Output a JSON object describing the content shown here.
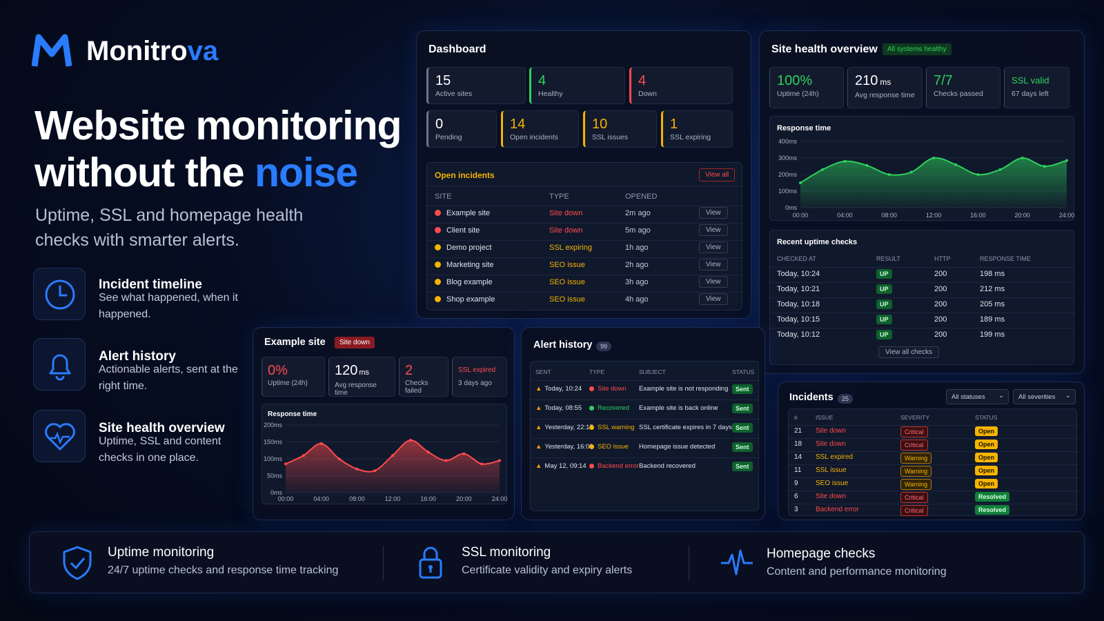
{
  "brand": {
    "name_main": "Monitro",
    "name_accent": "va"
  },
  "hero": {
    "line1": "Website monitoring",
    "line2_main": "without the ",
    "line2_accent": "noise",
    "subtitle": "Uptime, SSL and homepage health checks with smarter alerts."
  },
  "features": [
    {
      "title": "Incident timeline",
      "desc": "See what happened, when it happened.",
      "icon": "clock-icon"
    },
    {
      "title": "Alert history",
      "desc": "Actionable alerts, sent at the right time.",
      "icon": "bell-icon"
    },
    {
      "title": "Site health overview",
      "desc": "Uptime, SSL and content checks in one place.",
      "icon": "heart-pulse-icon"
    }
  ],
  "dashboard": {
    "title": "Dashboard",
    "stats": [
      {
        "value": "15",
        "label": "Active sites",
        "color": "#6b7690"
      },
      {
        "value": "4",
        "label": "Healthy",
        "color": "#2ed15a"
      },
      {
        "value": "4",
        "label": "Down",
        "color": "#ff4b4b"
      },
      {
        "value": "0",
        "label": "Pending",
        "color": "#6b7690"
      },
      {
        "value": "14",
        "label": "Open incidents",
        "color": "#f5b400"
      },
      {
        "value": "10",
        "label": "SSL issues",
        "color": "#f5b400"
      },
      {
        "value": "1",
        "label": "SSL expiring",
        "color": "#f5b400"
      }
    ],
    "incidents": {
      "title": "Open incidents",
      "view_all": "View all",
      "headers": [
        "SITE",
        "TYPE",
        "OPENED"
      ],
      "rows": [
        {
          "site": "Example site",
          "type": "Site down",
          "opened": "2m ago",
          "sev": "red",
          "action": "View"
        },
        {
          "site": "Client site",
          "type": "Site down",
          "opened": "5m ago",
          "sev": "red",
          "action": "View"
        },
        {
          "site": "Demo project",
          "type": "SSL expiring",
          "opened": "1h ago",
          "sev": "yel",
          "action": "View"
        },
        {
          "site": "Marketing site",
          "type": "SEO issue",
          "opened": "2h ago",
          "sev": "yel",
          "action": "View"
        },
        {
          "site": "Blog example",
          "type": "SEO issue",
          "opened": "3h ago",
          "sev": "yel",
          "action": "View"
        },
        {
          "site": "Shop example",
          "type": "SEO issue",
          "opened": "4h ago",
          "sev": "yel",
          "action": "View"
        }
      ]
    }
  },
  "health": {
    "title": "Site health overview",
    "badge": "All systems healthy",
    "stats": [
      {
        "value": "100%",
        "label": "Uptime (24h)",
        "color": "#2ed15a"
      },
      {
        "value": "210",
        "unit": "ms",
        "label": "Avg response time",
        "color": "#ffffff"
      },
      {
        "value": "7/7",
        "label": "Checks passed",
        "color": "#2ed15a"
      },
      {
        "value": "SSL valid",
        "label": "67 days left",
        "color": "#2ed15a"
      }
    ],
    "chart_title": "Response time",
    "checks": {
      "title": "Recent uptime checks",
      "headers": [
        "CHECKED AT",
        "RESULT",
        "HTTP",
        "RESPONSE TIME"
      ],
      "rows": [
        {
          "at": "Today, 10:24",
          "result": "UP",
          "http": "200",
          "rt": "198 ms"
        },
        {
          "at": "Today, 10:21",
          "result": "UP",
          "http": "200",
          "rt": "212 ms"
        },
        {
          "at": "Today, 10:18",
          "result": "UP",
          "http": "200",
          "rt": "205 ms"
        },
        {
          "at": "Today, 10:15",
          "result": "UP",
          "http": "200",
          "rt": "189 ms"
        },
        {
          "at": "Today, 10:12",
          "result": "UP",
          "http": "200",
          "rt": "199 ms"
        }
      ],
      "view_all": "View all checks"
    }
  },
  "example": {
    "title": "Example site",
    "badge": "Site down",
    "stats": [
      {
        "value": "0%",
        "label": "Uptime (24h)",
        "color": "#ff4b4b"
      },
      {
        "value": "120",
        "unit": "ms",
        "label": "Avg response time",
        "color": "#ffffff"
      },
      {
        "value": "2",
        "label": "Checks failed",
        "color": "#ff4b4b"
      },
      {
        "value": "SSL expired",
        "label": "3 days ago",
        "color": "#ff4b4b"
      }
    ],
    "chart_title": "Response time"
  },
  "alerts": {
    "title": "Alert history",
    "count": "99",
    "headers": [
      "SENT",
      "TYPE",
      "SUBJECT",
      "STATUS"
    ],
    "rows": [
      {
        "sent": "Today, 10:24",
        "type": "Site down",
        "tcolor": "red",
        "subject": "Example site is not responding",
        "status": "Sent"
      },
      {
        "sent": "Today, 08:55",
        "type": "Recovered",
        "tcolor": "grn",
        "subject": "Example site is back online",
        "status": "Sent"
      },
      {
        "sent": "Yesterday, 22:17",
        "type": "SSL warning",
        "tcolor": "yel",
        "subject": "SSL certificate expires in 7 days",
        "status": "Sent"
      },
      {
        "sent": "Yesterday, 16:03",
        "type": "SEO issue",
        "tcolor": "yel",
        "subject": "Homepage issue detected",
        "status": "Sent"
      },
      {
        "sent": "May 12, 09:14",
        "type": "Backend error",
        "tcolor": "red",
        "subject": "Backend recovered",
        "status": "Sent"
      }
    ]
  },
  "incidents": {
    "title": "Incidents",
    "count": "25",
    "filter1": "All statuses",
    "filter2": "All severities",
    "headers": [
      "#",
      "ISSUE",
      "SEVERITY",
      "STATUS"
    ],
    "rows": [
      {
        "id": "21",
        "issue": "Site down",
        "icolor": "red",
        "sev": "Critical",
        "status": "Open"
      },
      {
        "id": "18",
        "issue": "Site down",
        "icolor": "red",
        "sev": "Critical",
        "status": "Open"
      },
      {
        "id": "14",
        "issue": "SSL expired",
        "icolor": "yel",
        "sev": "Warning",
        "status": "Open"
      },
      {
        "id": "11",
        "issue": "SSL issue",
        "icolor": "yel",
        "sev": "Warning",
        "status": "Open"
      },
      {
        "id": "9",
        "issue": "SEO issue",
        "icolor": "yel",
        "sev": "Warning",
        "status": "Open"
      },
      {
        "id": "6",
        "issue": "Site down",
        "icolor": "red",
        "sev": "Critical",
        "status": "Resolved"
      },
      {
        "id": "3",
        "issue": "Backend error",
        "icolor": "red",
        "sev": "Critical",
        "status": "Resolved"
      }
    ]
  },
  "bottom": [
    {
      "title": "Uptime monitoring",
      "desc": "24/7 uptime checks and response time tracking",
      "icon": "shield-check-icon"
    },
    {
      "title": "SSL monitoring",
      "desc": "Certificate validity and expiry alerts",
      "icon": "lock-icon"
    },
    {
      "title": "Homepage checks",
      "desc": "Content and performance monitoring",
      "icon": "pulse-icon"
    }
  ],
  "chart_data": [
    {
      "type": "area",
      "title": "Response time",
      "x_ticks": [
        "00:00",
        "04:00",
        "08:00",
        "12:00",
        "16:00",
        "20:00",
        "24:00"
      ],
      "y_ticks": [
        "0ms",
        "100ms",
        "200ms",
        "300ms",
        "400ms"
      ],
      "ylim": [
        0,
        400
      ],
      "color": "#2ed15a",
      "x": [
        0,
        2,
        4,
        6,
        8,
        10,
        12,
        14,
        16,
        18,
        20,
        22,
        24
      ],
      "values": [
        150,
        230,
        280,
        255,
        200,
        215,
        300,
        260,
        200,
        230,
        300,
        250,
        285
      ]
    },
    {
      "type": "area",
      "title": "Response time",
      "x_ticks": [
        "00:00",
        "04:00",
        "08:00",
        "12:00",
        "16:00",
        "20:00",
        "24:00"
      ],
      "y_ticks": [
        "0ms",
        "50ms",
        "100ms",
        "150ms",
        "200ms"
      ],
      "ylim": [
        0,
        200
      ],
      "color": "#ff4b4b",
      "x": [
        0,
        2,
        4,
        6,
        8,
        10,
        12,
        14,
        16,
        18,
        20,
        22,
        24
      ],
      "values": [
        85,
        110,
        145,
        100,
        70,
        65,
        110,
        155,
        120,
        95,
        115,
        85,
        95
      ]
    }
  ]
}
